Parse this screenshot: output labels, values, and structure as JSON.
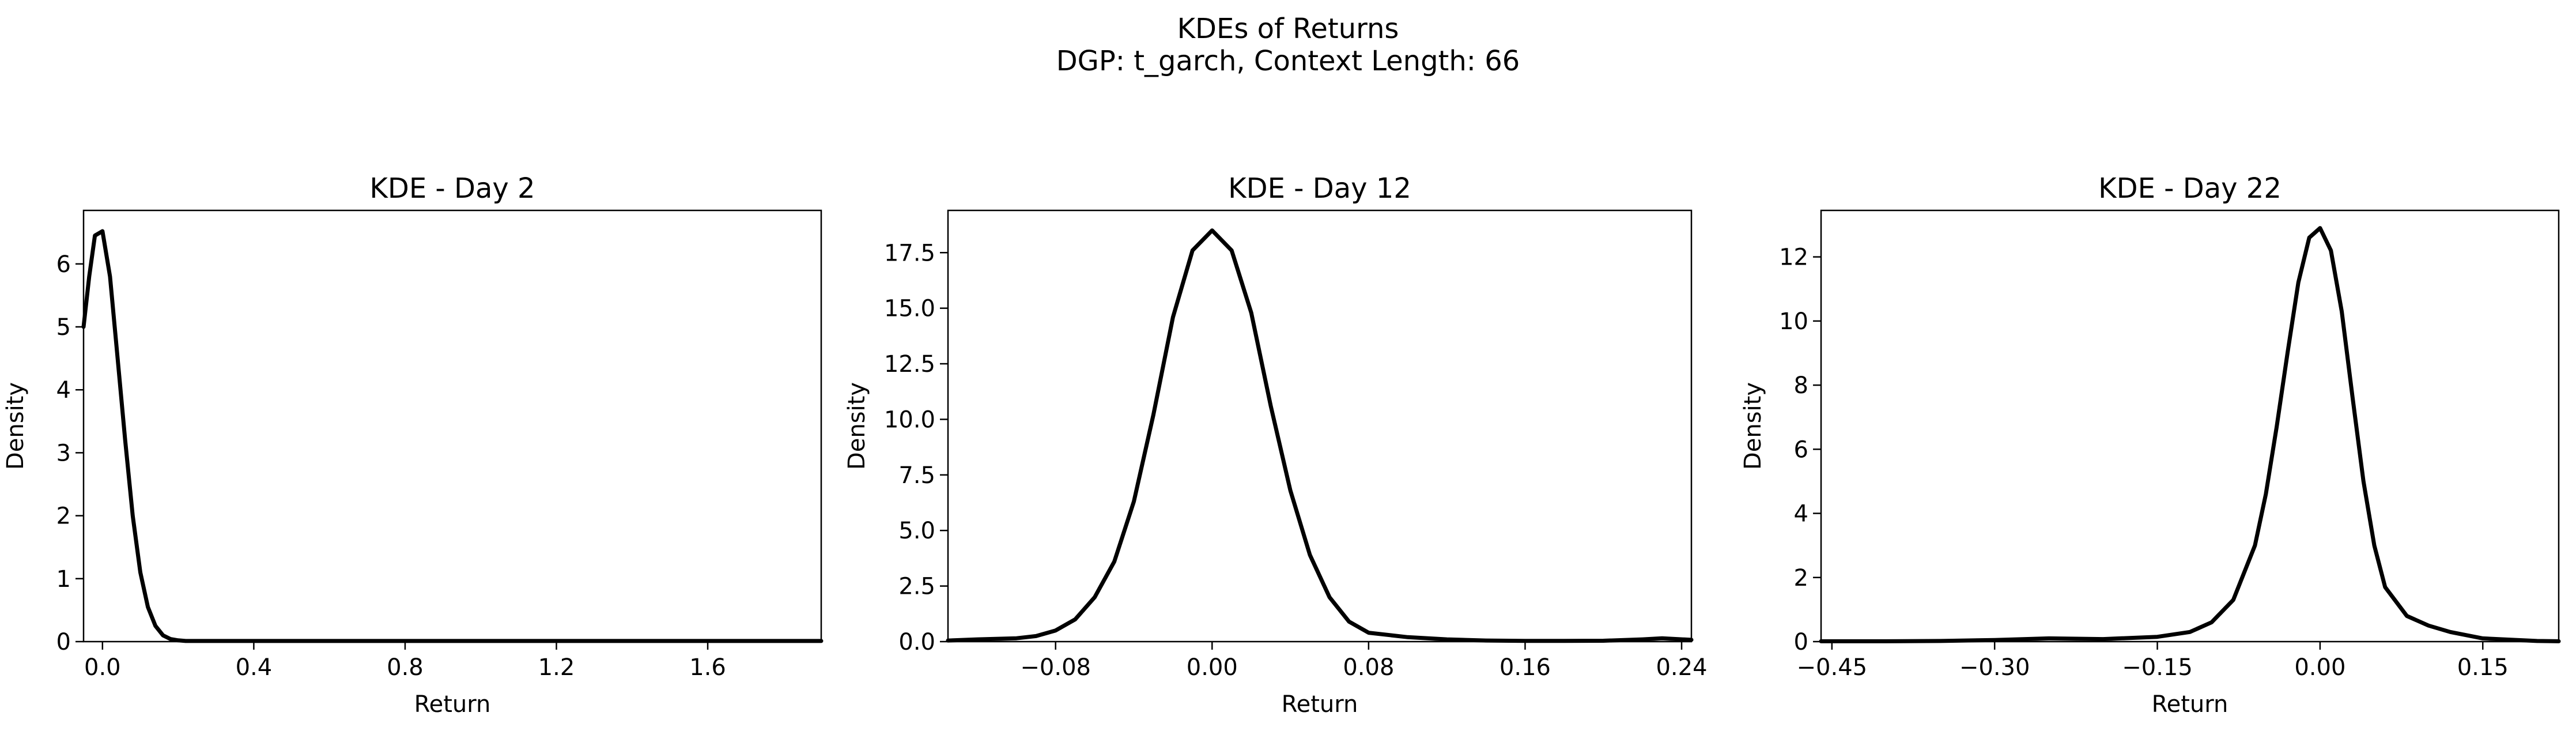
{
  "figure": {
    "title": "KDEs of Returns",
    "subtitle": "DGP: t_garch, Context Length: 66"
  },
  "chart_data": [
    {
      "type": "line",
      "title": "KDE - Day 2",
      "xlabel": "Return",
      "ylabel": "Density",
      "xlim": [
        -0.05,
        1.9
      ],
      "ylim": [
        0,
        6.85
      ],
      "xticks": [
        0.0,
        0.4,
        0.8,
        1.2,
        1.6
      ],
      "xtick_labels": [
        "0.0",
        "0.4",
        "0.8",
        "1.2",
        "1.6"
      ],
      "yticks": [
        0,
        1,
        2,
        3,
        4,
        5,
        6
      ],
      "ytick_labels": [
        "0",
        "1",
        "2",
        "3",
        "4",
        "5",
        "6"
      ],
      "grid": false,
      "color": "#000000",
      "x": [
        -0.05,
        -0.035,
        -0.02,
        0.0,
        0.02,
        0.04,
        0.06,
        0.08,
        0.1,
        0.12,
        0.14,
        0.16,
        0.18,
        0.2,
        0.22,
        0.25,
        0.3,
        0.4,
        0.6,
        0.8,
        1.0,
        1.2,
        1.4,
        1.6,
        1.8,
        1.9
      ],
      "y": [
        5.0,
        5.8,
        6.45,
        6.52,
        5.8,
        4.5,
        3.2,
        2.0,
        1.1,
        0.55,
        0.25,
        0.1,
        0.04,
        0.02,
        0.01,
        0.01,
        0.01,
        0.01,
        0.01,
        0.01,
        0.01,
        0.01,
        0.01,
        0.01,
        0.01,
        0.01
      ]
    },
    {
      "type": "line",
      "title": "KDE - Day 12",
      "xlabel": "Return",
      "ylabel": "Density",
      "xlim": [
        -0.135,
        0.245
      ],
      "ylim": [
        0,
        19.4
      ],
      "xticks": [
        -0.08,
        0.0,
        0.08,
        0.16,
        0.24
      ],
      "xtick_labels": [
        "−0.08",
        "0.00",
        "0.08",
        "0.16",
        "0.24"
      ],
      "yticks": [
        0.0,
        2.5,
        5.0,
        7.5,
        10.0,
        12.5,
        15.0,
        17.5
      ],
      "ytick_labels": [
        "0.0",
        "2.5",
        "5.0",
        "7.5",
        "10.0",
        "12.5",
        "15.0",
        "17.5"
      ],
      "grid": false,
      "color": "#000000",
      "x": [
        -0.135,
        -0.12,
        -0.1,
        -0.09,
        -0.08,
        -0.07,
        -0.06,
        -0.05,
        -0.04,
        -0.03,
        -0.02,
        -0.01,
        0.0,
        0.01,
        0.02,
        0.03,
        0.04,
        0.05,
        0.06,
        0.07,
        0.08,
        0.1,
        0.12,
        0.14,
        0.16,
        0.18,
        0.2,
        0.22,
        0.23,
        0.245
      ],
      "y": [
        0.05,
        0.1,
        0.15,
        0.25,
        0.5,
        1.0,
        2.0,
        3.6,
        6.3,
        10.2,
        14.6,
        17.6,
        18.5,
        17.6,
        14.8,
        10.6,
        6.8,
        3.9,
        2.0,
        0.9,
        0.4,
        0.2,
        0.1,
        0.05,
        0.03,
        0.03,
        0.04,
        0.1,
        0.15,
        0.08
      ]
    },
    {
      "type": "line",
      "title": "KDE - Day 22",
      "xlabel": "Return",
      "ylabel": "Density",
      "xlim": [
        -0.46,
        0.22
      ],
      "ylim": [
        0,
        13.45
      ],
      "xticks": [
        -0.45,
        -0.3,
        -0.15,
        0.0,
        0.15
      ],
      "xtick_labels": [
        "−0.45",
        "−0.30",
        "−0.15",
        "0.00",
        "0.15"
      ],
      "yticks": [
        0,
        2,
        4,
        6,
        8,
        10,
        12
      ],
      "ytick_labels": [
        "0",
        "2",
        "4",
        "6",
        "8",
        "10",
        "12"
      ],
      "grid": false,
      "color": "#000000",
      "x": [
        -0.46,
        -0.4,
        -0.35,
        -0.3,
        -0.25,
        -0.2,
        -0.15,
        -0.12,
        -0.1,
        -0.08,
        -0.06,
        -0.05,
        -0.04,
        -0.03,
        -0.02,
        -0.01,
        0.0,
        0.01,
        0.02,
        0.03,
        0.04,
        0.05,
        0.06,
        0.08,
        0.1,
        0.12,
        0.15,
        0.2,
        0.22
      ],
      "y": [
        0.01,
        0.01,
        0.02,
        0.05,
        0.1,
        0.08,
        0.15,
        0.3,
        0.6,
        1.3,
        3.0,
        4.6,
        6.7,
        9.0,
        11.2,
        12.6,
        12.9,
        12.2,
        10.3,
        7.6,
        5.0,
        3.0,
        1.7,
        0.8,
        0.5,
        0.3,
        0.1,
        0.02,
        0.01
      ]
    }
  ]
}
